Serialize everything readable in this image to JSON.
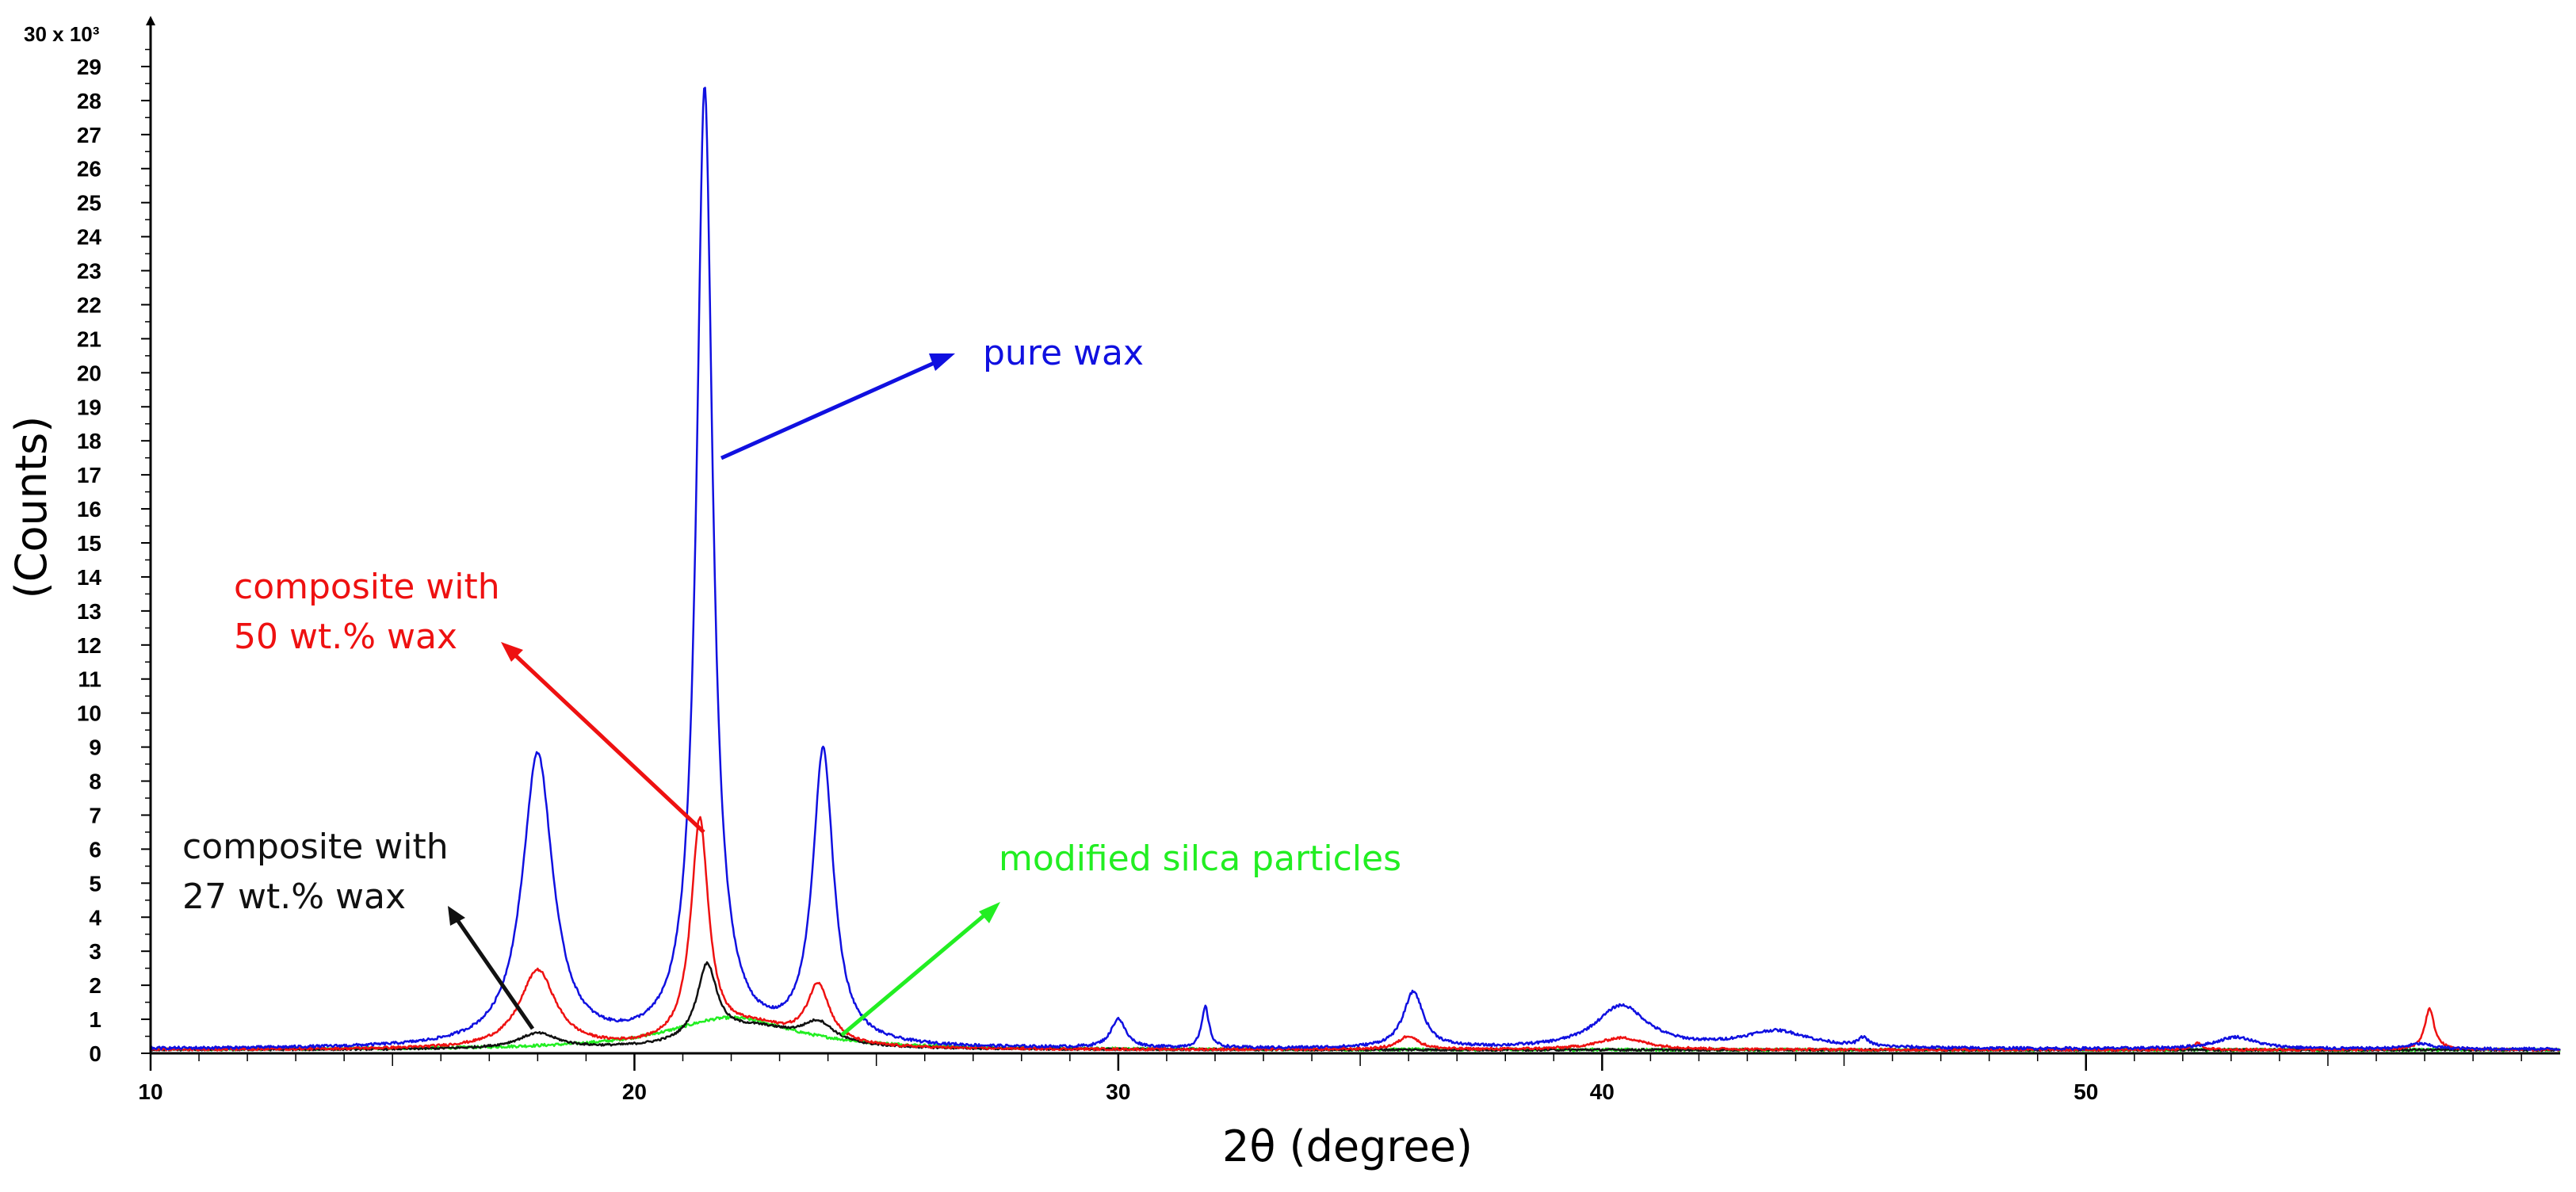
{
  "chart_data": {
    "type": "line",
    "title": "",
    "xlabel": "2θ (degree)",
    "ylabel": "(Counts)",
    "y_scale_label": "30 x 10³",
    "xlim": [
      10,
      59.8
    ],
    "ylim": [
      0,
      30
    ],
    "x_ticks": [
      10,
      20,
      30,
      40,
      50
    ],
    "x_tick_labels": [
      "10",
      "20",
      "30",
      "40",
      "50"
    ],
    "y_ticks": [
      0,
      1,
      2,
      3,
      4,
      5,
      6,
      7,
      8,
      9,
      10,
      11,
      12,
      13,
      14,
      15,
      16,
      17,
      18,
      19,
      20,
      21,
      22,
      23,
      24,
      25,
      26,
      27,
      28,
      29
    ],
    "y_tick_labels": [
      "0",
      "1",
      "2",
      "3",
      "4",
      "5",
      "6",
      "7",
      "8",
      "9",
      "10",
      "11",
      "12",
      "13",
      "14",
      "15",
      "16",
      "17",
      "18",
      "19",
      "20",
      "21",
      "22",
      "23",
      "24",
      "25",
      "26",
      "27",
      "28",
      "29"
    ],
    "grid": false,
    "series": [
      {
        "name": "pure wax",
        "color": "#1010e0",
        "baseline": 0.12,
        "peaks": [
          [
            18.0,
            8.6,
            0.38
          ],
          [
            21.45,
            27.6,
            0.2
          ],
          [
            21.7,
            0.6,
            0.6
          ],
          [
            23.9,
            8.6,
            0.26
          ],
          [
            30.0,
            0.85,
            0.18
          ],
          [
            31.8,
            1.2,
            0.09
          ],
          [
            36.1,
            1.65,
            0.25
          ],
          [
            40.4,
            1.25,
            0.65
          ],
          [
            43.6,
            0.5,
            0.85
          ],
          [
            45.4,
            0.25,
            0.12
          ],
          [
            53.1,
            0.35,
            0.5
          ],
          [
            56.9,
            0.15,
            0.3
          ]
        ],
        "noise": 0.08
      },
      {
        "name": "composite with 50 wt.% wax",
        "color": "#ee1111",
        "baseline": 0.1,
        "peaks": [
          [
            18.0,
            2.3,
            0.45
          ],
          [
            21.35,
            6.5,
            0.22
          ],
          [
            22.5,
            0.6,
            1.0
          ],
          [
            23.8,
            1.7,
            0.28
          ],
          [
            36.0,
            0.4,
            0.25
          ],
          [
            40.4,
            0.35,
            0.6
          ],
          [
            52.3,
            0.2,
            0.12
          ],
          [
            57.1,
            1.2,
            0.12
          ]
        ],
        "noise": 0.07
      },
      {
        "name": "composite with 27 wt.% wax",
        "color": "#111111",
        "baseline": 0.1,
        "peaks": [
          [
            18.0,
            0.45,
            0.5
          ],
          [
            21.5,
            2.2,
            0.25
          ],
          [
            22.5,
            0.6,
            1.1
          ],
          [
            23.8,
            0.6,
            0.4
          ]
        ],
        "noise": 0.06
      },
      {
        "name": "modified silca particles",
        "color": "#22ee22",
        "baseline": 0.1,
        "peaks": [
          [
            22.0,
            0.95,
            1.6
          ]
        ],
        "noise": 0.08
      }
    ],
    "annotations": [
      {
        "text": "pure wax",
        "color": "#1010e0",
        "lines": [
          "pure wax"
        ]
      },
      {
        "text": "composite with 50 wt.% wax",
        "color": "#ee1111",
        "lines": [
          "composite with",
          "50 wt.% wax"
        ]
      },
      {
        "text": "composite with 27 wt.% wax",
        "color": "#111111",
        "lines": [
          "composite with",
          "27 wt.% wax"
        ]
      },
      {
        "text": "modified silca particles",
        "color": "#22ee22",
        "lines": [
          "modified silca particles"
        ]
      }
    ]
  }
}
